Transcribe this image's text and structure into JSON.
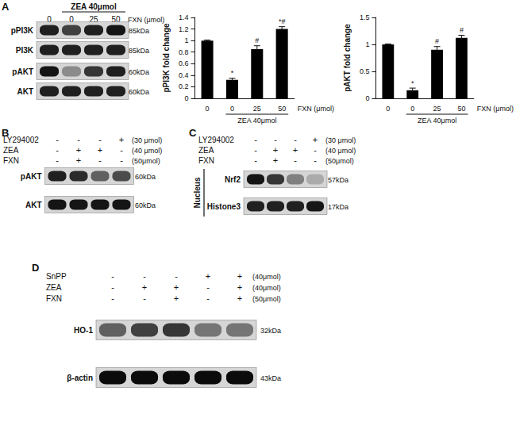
{
  "chart_data": [
    {
      "type": "bar",
      "y_label": "pPI3K fold change",
      "x_label": "FXN (μmol)",
      "categories": [
        "0",
        "0",
        "25",
        "50"
      ],
      "values": [
        1.0,
        0.32,
        0.85,
        1.2
      ],
      "errors": [
        0.01,
        0.03,
        0.06,
        0.04
      ],
      "annotations": [
        null,
        "*",
        "#",
        "*#"
      ],
      "group": {
        "label": "ZEA 40μmol",
        "from": 1,
        "to": 3
      },
      "color": "#000000",
      "ylim": [
        0,
        1.4
      ],
      "yticks": [
        0,
        0.2,
        0.4,
        0.6,
        0.8,
        1,
        1.2,
        1.4
      ],
      "grid": false
    },
    {
      "type": "bar",
      "y_label": "pAKT fold change",
      "x_label": "FXN (μmol)",
      "categories": [
        "0",
        "0",
        "25",
        "50"
      ],
      "values": [
        1.0,
        0.15,
        0.9,
        1.12
      ],
      "errors": [
        0.01,
        0.04,
        0.06,
        0.05
      ],
      "annotations": [
        null,
        "*",
        "#",
        "#"
      ],
      "group": {
        "label": "ZEA 40μmol",
        "from": 1,
        "to": 3
      },
      "color": "#000000",
      "ylim": [
        0,
        1.5
      ],
      "yticks": [
        0,
        0.5,
        1,
        1.5
      ],
      "grid": false
    }
  ],
  "panels": [
    {
      "letter": "A",
      "header": {
        "group": "ZEA 40μmol",
        "lanes": [
          "0",
          "0",
          "25",
          "50"
        ],
        "unit": "FXN (μmol)"
      },
      "bands": [
        {
          "name": "pPI3K",
          "kda": "85kDa",
          "intensity": [
            0.85,
            0.7,
            0.85,
            0.9
          ]
        },
        {
          "name": "PI3K",
          "kda": "85kDa",
          "intensity": [
            0.85,
            0.85,
            0.85,
            0.85
          ]
        },
        {
          "name": "pAKT",
          "kda": "60kDa",
          "intensity": [
            0.9,
            0.35,
            0.75,
            0.85
          ]
        },
        {
          "name": "AKT",
          "kda": "60kDa",
          "intensity": [
            0.85,
            0.85,
            0.85,
            0.85
          ]
        }
      ]
    },
    {
      "letter": "B",
      "treatments": [
        {
          "name": "LY294002",
          "signs": [
            "-",
            "-",
            "-",
            "+"
          ],
          "conc": "(30 μmol)"
        },
        {
          "name": "ZEA",
          "signs": [
            "-",
            "+",
            "+",
            "-"
          ],
          "conc": "(40 μmol)"
        },
        {
          "name": "FXN",
          "signs": [
            "-",
            "+",
            "-",
            "-"
          ],
          "conc": "(50μmol)"
        }
      ],
      "bands": [
        {
          "name": "pAKT",
          "kda": "60kDa",
          "intensity": [
            0.85,
            0.8,
            0.55,
            0.65
          ]
        },
        {
          "name": "AKT",
          "kda": "60kDa",
          "intensity": [
            0.9,
            0.9,
            0.9,
            0.9
          ]
        }
      ]
    },
    {
      "letter": "C",
      "compartment": "Nucleus",
      "treatments": [
        {
          "name": "LY294002",
          "signs": [
            "-",
            "-",
            "-",
            "+"
          ],
          "conc": "(30 μmol)"
        },
        {
          "name": "ZEA",
          "signs": [
            "-",
            "+",
            "+",
            "-"
          ],
          "conc": "(40 μmol)"
        },
        {
          "name": "FXN",
          "signs": [
            "-",
            "+",
            "-",
            "-"
          ],
          "conc": "(50μmol)"
        }
      ],
      "bands": [
        {
          "name": "Nrf2",
          "kda": "57kDa",
          "intensity": [
            0.9,
            0.75,
            0.4,
            0.2
          ]
        },
        {
          "name": "Histone3",
          "kda": "17kDa",
          "intensity": [
            0.85,
            0.85,
            0.85,
            0.9
          ]
        }
      ]
    },
    {
      "letter": "D",
      "treatments": [
        {
          "name": "SnPP",
          "signs": [
            "-",
            "-",
            "-",
            "+",
            "+"
          ],
          "conc": "(40μmol)"
        },
        {
          "name": "ZEA",
          "signs": [
            "-",
            "+",
            "+",
            "-",
            "+"
          ],
          "conc": "(40μmol)"
        },
        {
          "name": "FXN",
          "signs": [
            "-",
            "-",
            "+",
            "-",
            "+"
          ],
          "conc": "(50μmol)"
        }
      ],
      "bands": [
        {
          "name": "HO-1",
          "kda": "32kDa",
          "intensity": [
            0.55,
            0.7,
            0.75,
            0.45,
            0.45
          ]
        },
        {
          "name": "β-actin",
          "kda": "43kDa",
          "intensity": [
            0.95,
            0.95,
            0.95,
            0.95,
            0.95
          ]
        }
      ]
    }
  ]
}
